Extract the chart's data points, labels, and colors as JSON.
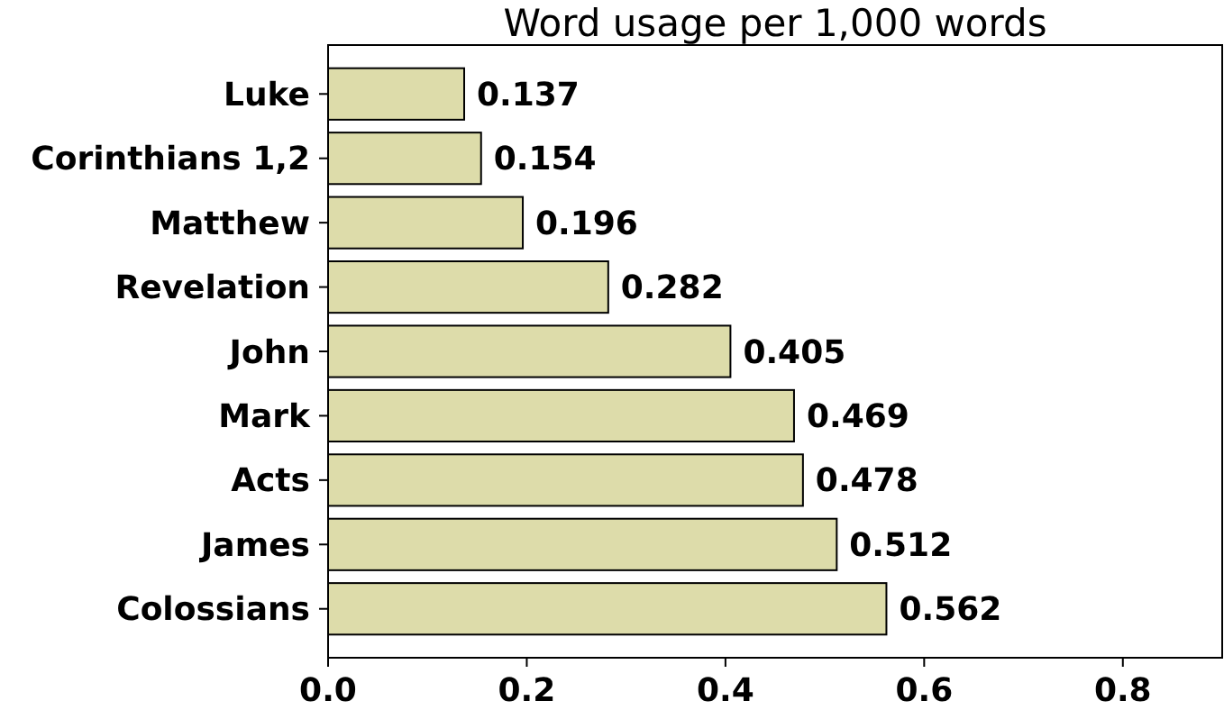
{
  "chart_data": {
    "type": "bar",
    "orientation": "horizontal",
    "title": "Word usage per 1,000 words",
    "categories": [
      "Luke",
      "Corinthians 1,2",
      "Matthew",
      "Revelation",
      "John",
      "Mark",
      "Acts",
      "James",
      "Colossians"
    ],
    "values": [
      0.137,
      0.154,
      0.196,
      0.282,
      0.405,
      0.469,
      0.478,
      0.512,
      0.562
    ],
    "color": "#dddcaa",
    "xlim": [
      0,
      0.9
    ],
    "xticks": [
      {
        "value": 0,
        "label": "0.0"
      },
      0.2,
      0.4,
      0.6,
      0.8
    ],
    "data_labels": true
  }
}
